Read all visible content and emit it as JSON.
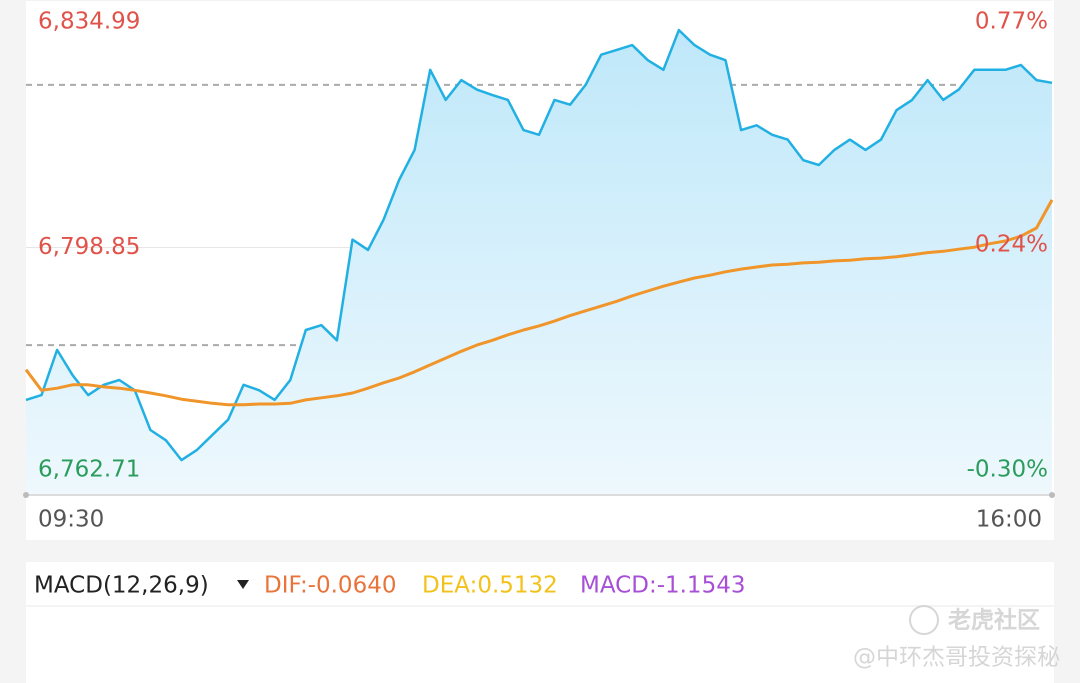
{
  "chart_data": {
    "type": "line",
    "categories": [
      "09:30",
      null,
      null,
      null,
      null,
      null,
      null,
      null,
      null,
      null,
      null,
      null,
      null,
      null,
      null,
      null,
      null,
      null,
      null,
      null,
      null,
      null,
      null,
      null,
      null,
      null,
      null,
      null,
      null,
      null,
      null,
      null,
      null,
      null,
      null,
      null,
      null,
      null,
      null,
      null,
      null,
      null,
      null,
      null,
      null,
      null,
      null,
      null,
      null,
      null,
      null,
      null,
      null,
      null,
      null,
      null,
      null,
      null,
      null,
      null,
      null,
      null,
      null,
      null,
      null,
      null,
      "16:00"
    ],
    "ylim": [
      6762.71,
      6834.99
    ],
    "yticks": [
      {
        "value": 6834.99,
        "label": "6,834.99"
      },
      {
        "value": 6798.85,
        "label": "6,798.85"
      },
      {
        "value": 6762.71,
        "label": "6,762.71"
      }
    ],
    "y2lim": [
      -0.3,
      0.77
    ],
    "y2ticks": [
      {
        "value": 0.77,
        "label": "0.77%"
      },
      {
        "value": 0.24,
        "label": "0.24%"
      },
      {
        "value": -0.3,
        "label": "-0.30%"
      }
    ],
    "dashed_lines": [
      6822.6,
      6784.6
    ],
    "grid": true,
    "up_color": "#e0534b",
    "down_color": "#2a9d5c",
    "series": [
      {
        "color": "#22b0e3",
        "fill": true,
        "values": [
          6776.6,
          6777.3,
          6783.9,
          6780.2,
          6777.3,
          6778.8,
          6779.5,
          6778.0,
          6772.2,
          6770.7,
          6767.8,
          6769.3,
          6771.5,
          6773.7,
          6778.8,
          6778.0,
          6776.6,
          6779.5,
          6786.8,
          6787.5,
          6785.3,
          6800.0,
          6798.5,
          6802.9,
          6808.7,
          6813.1,
          6824.8,
          6820.4,
          6823.3,
          6821.9,
          6821.1,
          6820.4,
          6816.0,
          6815.3,
          6820.4,
          6819.7,
          6822.6,
          6827.0,
          6827.7,
          6828.4,
          6826.2,
          6824.8,
          6830.6,
          6828.4,
          6827.0,
          6826.2,
          6816.0,
          6816.7,
          6815.3,
          6814.6,
          6811.6,
          6810.9,
          6813.1,
          6814.6,
          6813.1,
          6814.6,
          6818.9,
          6820.4,
          6823.3,
          6820.4,
          6821.9,
          6824.8,
          6824.8,
          6824.8,
          6825.5,
          6823.3,
          6822.9
        ]
      },
      {
        "color": "#f0952a",
        "fill": false,
        "values": [
          6781.0,
          6778.0,
          6778.3,
          6778.8,
          6778.8,
          6778.5,
          6778.3,
          6778.0,
          6777.6,
          6777.2,
          6776.7,
          6776.4,
          6776.1,
          6775.9,
          6775.9,
          6776.0,
          6776.0,
          6776.1,
          6776.6,
          6776.9,
          6777.2,
          6777.6,
          6778.3,
          6779.1,
          6779.8,
          6780.7,
          6781.7,
          6782.7,
          6783.7,
          6784.6,
          6785.3,
          6786.1,
          6786.8,
          6787.4,
          6788.1,
          6788.9,
          6789.6,
          6790.3,
          6791.0,
          6791.8,
          6792.5,
          6793.2,
          6793.8,
          6794.4,
          6794.8,
          6795.3,
          6795.7,
          6796.0,
          6796.3,
          6796.4,
          6796.6,
          6796.7,
          6796.9,
          6797.0,
          6797.2,
          6797.3,
          6797.5,
          6797.8,
          6798.1,
          6798.3,
          6798.6,
          6798.9,
          6799.4,
          6799.8,
          6800.5,
          6801.7,
          6805.8
        ]
      }
    ]
  },
  "macd_panel": {
    "title": "MACD(12,26,9)",
    "dif": "DIF:-0.0640",
    "dea": "DEA:0.5132",
    "macd": "MACD:-1.1543"
  },
  "watermark": {
    "brand": "老虎社区",
    "author": "@中环杰哥投资探秘"
  }
}
